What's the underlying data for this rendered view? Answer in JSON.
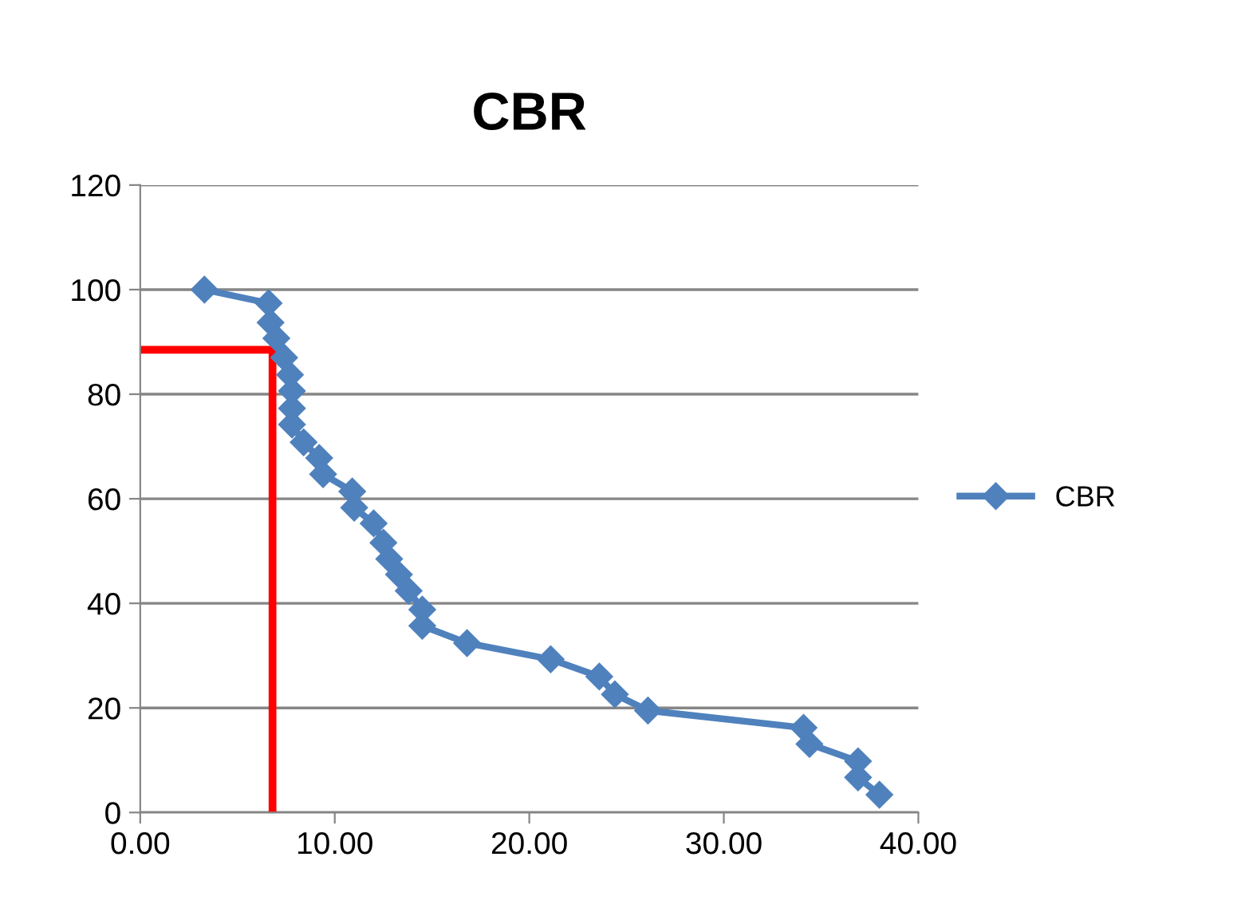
{
  "chart_data": {
    "type": "line",
    "title": "CBR",
    "xlim": [
      0,
      40
    ],
    "xticks": [
      {
        "value": 0,
        "label": "0.00"
      },
      {
        "value": 10,
        "label": "10.00"
      },
      {
        "value": 20,
        "label": "20.00"
      },
      {
        "value": 30,
        "label": "30.00"
      },
      {
        "value": 40,
        "label": "40.00"
      }
    ],
    "ylim": [
      0,
      120
    ],
    "yticks": [
      0,
      20,
      40,
      60,
      80,
      100,
      120
    ],
    "grid": "y",
    "legend": "right",
    "marker": "diamond",
    "line_style": "solid",
    "series": [
      {
        "name": "CBR",
        "color": "#4f81bd",
        "x": [
          3.3,
          6.6,
          6.7,
          7.0,
          7.4,
          7.7,
          7.8,
          7.8,
          7.8,
          8.4,
          9.2,
          9.4,
          10.9,
          11.0,
          12.0,
          12.5,
          12.8,
          13.3,
          13.8,
          14.5,
          14.5,
          16.8,
          21.1,
          23.6,
          24.4,
          26.1,
          34.1,
          34.4,
          36.9,
          36.9,
          38.0
        ],
        "values": [
          100,
          97.4,
          93.7,
          90.7,
          87,
          83.7,
          80.6,
          77.3,
          74.2,
          70.8,
          67.8,
          64.7,
          61.4,
          58.3,
          55.3,
          51.6,
          48.5,
          45.5,
          42.4,
          38.8,
          35.7,
          32.4,
          29.3,
          26.0,
          22.6,
          19.5,
          16.2,
          13.1,
          9.8,
          6.7,
          3.4
        ]
      },
      {
        "color": "#ff0000",
        "x": [
          0,
          6.8,
          6.8
        ],
        "values": [
          88.5,
          88.5,
          0
        ],
        "marker": "none"
      }
    ]
  }
}
